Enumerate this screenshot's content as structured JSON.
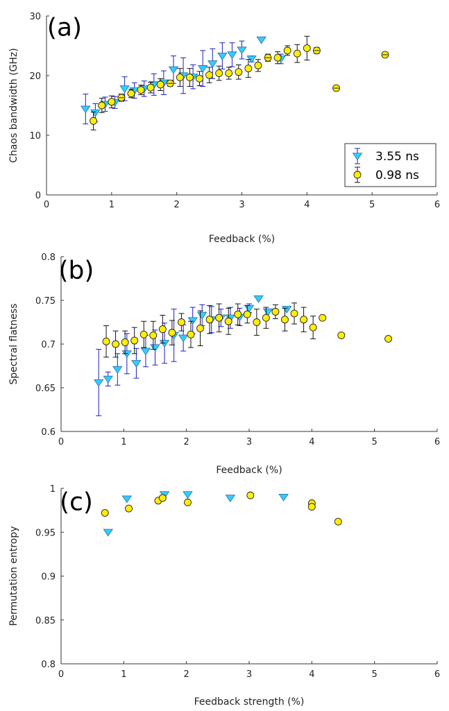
{
  "chart_data": [
    {
      "type": "scatter",
      "panel_label": "(a)",
      "xlabel": "Feedback (%)",
      "ylabel": "Chaos bandwidth (GHz)",
      "xlim": [
        0,
        6
      ],
      "ylim": [
        0,
        30
      ],
      "xticks": [
        0,
        1,
        2,
        3,
        4,
        5,
        6
      ],
      "yticks": [
        0,
        10,
        20,
        30
      ],
      "grid": false,
      "legend": {
        "placement": "bottom-right",
        "entries": [
          "3.55 ns",
          "0.98 ns"
        ]
      },
      "series": [
        {
          "name": "3.55 ns",
          "marker": "triangle-down",
          "color": "#33ccff",
          "error_color": "#1a1ac8",
          "x": [
            0.6,
            0.75,
            0.9,
            1.05,
            1.2,
            1.35,
            1.5,
            1.65,
            1.8,
            1.95,
            2.1,
            2.25,
            2.4,
            2.55,
            2.7,
            2.85,
            3.0,
            3.15,
            3.3,
            3.6
          ],
          "y": [
            14.4,
            13.8,
            15.2,
            15.5,
            17.8,
            17.5,
            17.8,
            18.5,
            18.8,
            21.0,
            20.0,
            19.8,
            21.2,
            22.0,
            23.3,
            23.5,
            24.3,
            22.8,
            26.0,
            22.8
          ],
          "err": [
            2.5,
            1.5,
            1.2,
            1.0,
            2.0,
            1.3,
            1.3,
            1.8,
            2.0,
            2.3,
            3.0,
            2.0,
            3.0,
            2.5,
            2.2,
            2.0,
            1.5,
            0.5,
            0.0,
            0.8
          ]
        },
        {
          "name": "0.98 ns",
          "marker": "circle",
          "color": "#ffee00",
          "error_color": "#111111",
          "x": [
            0.72,
            0.85,
            1.0,
            1.15,
            1.3,
            1.45,
            1.6,
            1.75,
            1.9,
            2.05,
            2.2,
            2.35,
            2.5,
            2.65,
            2.8,
            2.95,
            3.1,
            3.25,
            3.4,
            3.55,
            3.7,
            3.85,
            4.0,
            4.15,
            4.45,
            5.2
          ],
          "y": [
            12.4,
            15.0,
            15.6,
            16.3,
            17.0,
            17.6,
            18.0,
            18.5,
            18.7,
            19.7,
            19.7,
            19.5,
            20.1,
            20.4,
            20.4,
            20.6,
            21.2,
            21.7,
            23.0,
            23.0,
            24.2,
            23.7,
            24.6,
            24.2,
            17.9,
            23.5
          ],
          "err": [
            1.5,
            1.2,
            1.0,
            0.6,
            0.7,
            0.8,
            0.9,
            1.0,
            0.5,
            1.5,
            1.5,
            1.2,
            1.3,
            1.2,
            1.0,
            1.2,
            1.5,
            1.0,
            0.6,
            1.0,
            0.8,
            1.5,
            2.0,
            0.5,
            0.3,
            0.4
          ]
        }
      ]
    },
    {
      "type": "scatter",
      "panel_label": "(b)",
      "xlabel": "Feedback (%)",
      "ylabel": "Spectral flatness",
      "xlim": [
        0,
        6
      ],
      "ylim": [
        0.6,
        0.8
      ],
      "xticks": [
        0,
        1,
        2,
        3,
        4,
        5,
        6
      ],
      "yticks": [
        0.6,
        0.65,
        0.7,
        0.75,
        0.8
      ],
      "grid": false,
      "series": [
        {
          "name": "3.55 ns",
          "marker": "triangle-down",
          "color": "#33ccff",
          "error_color": "#1a1ac8",
          "x": [
            0.6,
            0.75,
            0.9,
            1.05,
            1.2,
            1.35,
            1.5,
            1.65,
            1.8,
            1.95,
            2.1,
            2.25,
            2.4,
            2.55,
            2.7,
            2.85,
            3.0,
            3.15,
            3.3,
            3.6
          ],
          "y": [
            0.656,
            0.66,
            0.671,
            0.689,
            0.678,
            0.692,
            0.696,
            0.701,
            0.71,
            0.707,
            0.727,
            0.733,
            0.728,
            0.73,
            0.73,
            0.731,
            0.741,
            0.752,
            0.737,
            0.74
          ],
          "err": [
            0.038,
            0.008,
            0.018,
            0.023,
            0.017,
            0.018,
            0.02,
            0.023,
            0.03,
            0.015,
            0.015,
            0.012,
            0.015,
            0.01,
            0.012,
            0.01,
            0.005,
            0.0,
            0.0,
            0.0
          ]
        },
        {
          "name": "0.98 ns",
          "marker": "circle",
          "color": "#ffee00",
          "error_color": "#111111",
          "x": [
            0.72,
            0.87,
            1.02,
            1.17,
            1.32,
            1.47,
            1.62,
            1.77,
            1.92,
            2.07,
            2.22,
            2.37,
            2.52,
            2.67,
            2.82,
            2.97,
            3.12,
            3.27,
            3.42,
            3.57,
            3.72,
            3.87,
            4.02,
            4.17,
            4.47,
            5.22
          ],
          "y": [
            0.703,
            0.7,
            0.702,
            0.704,
            0.711,
            0.71,
            0.717,
            0.713,
            0.725,
            0.711,
            0.718,
            0.728,
            0.73,
            0.726,
            0.734,
            0.734,
            0.725,
            0.73,
            0.737,
            0.728,
            0.735,
            0.728,
            0.719,
            0.73,
            0.71,
            0.706
          ],
          "err": [
            0.018,
            0.015,
            0.013,
            0.015,
            0.015,
            0.016,
            0.016,
            0.014,
            0.01,
            0.015,
            0.02,
            0.016,
            0.016,
            0.015,
            0.012,
            0.01,
            0.015,
            0.012,
            0.008,
            0.013,
            0.012,
            0.014,
            0.013,
            0.0,
            0.0,
            0.0
          ]
        }
      ]
    },
    {
      "type": "scatter",
      "panel_label": "(c)",
      "xlabel": "Feedback strength (%)",
      "ylabel": "Permutation entropy",
      "xlim": [
        0,
        6
      ],
      "ylim": [
        0.8,
        1.0
      ],
      "xticks": [
        0,
        1,
        2,
        3,
        4,
        5,
        6
      ],
      "yticks": [
        0.8,
        0.85,
        0.9,
        0.95,
        1
      ],
      "grid": false,
      "series": [
        {
          "name": "3.55 ns",
          "marker": "triangle-down",
          "color": "#33ccff",
          "x": [
            0.75,
            1.05,
            1.65,
            2.02,
            2.7,
            3.55
          ],
          "y": [
            0.95,
            0.988,
            0.993,
            0.993,
            0.989,
            0.99
          ]
        },
        {
          "name": "0.98 ns",
          "marker": "circle",
          "color": "#ffee00",
          "x": [
            0.7,
            1.08,
            1.55,
            1.62,
            2.02,
            3.02,
            4.0,
            4.0,
            4.42
          ],
          "y": [
            0.972,
            0.977,
            0.986,
            0.989,
            0.984,
            0.992,
            0.983,
            0.979,
            0.962
          ]
        }
      ]
    }
  ]
}
